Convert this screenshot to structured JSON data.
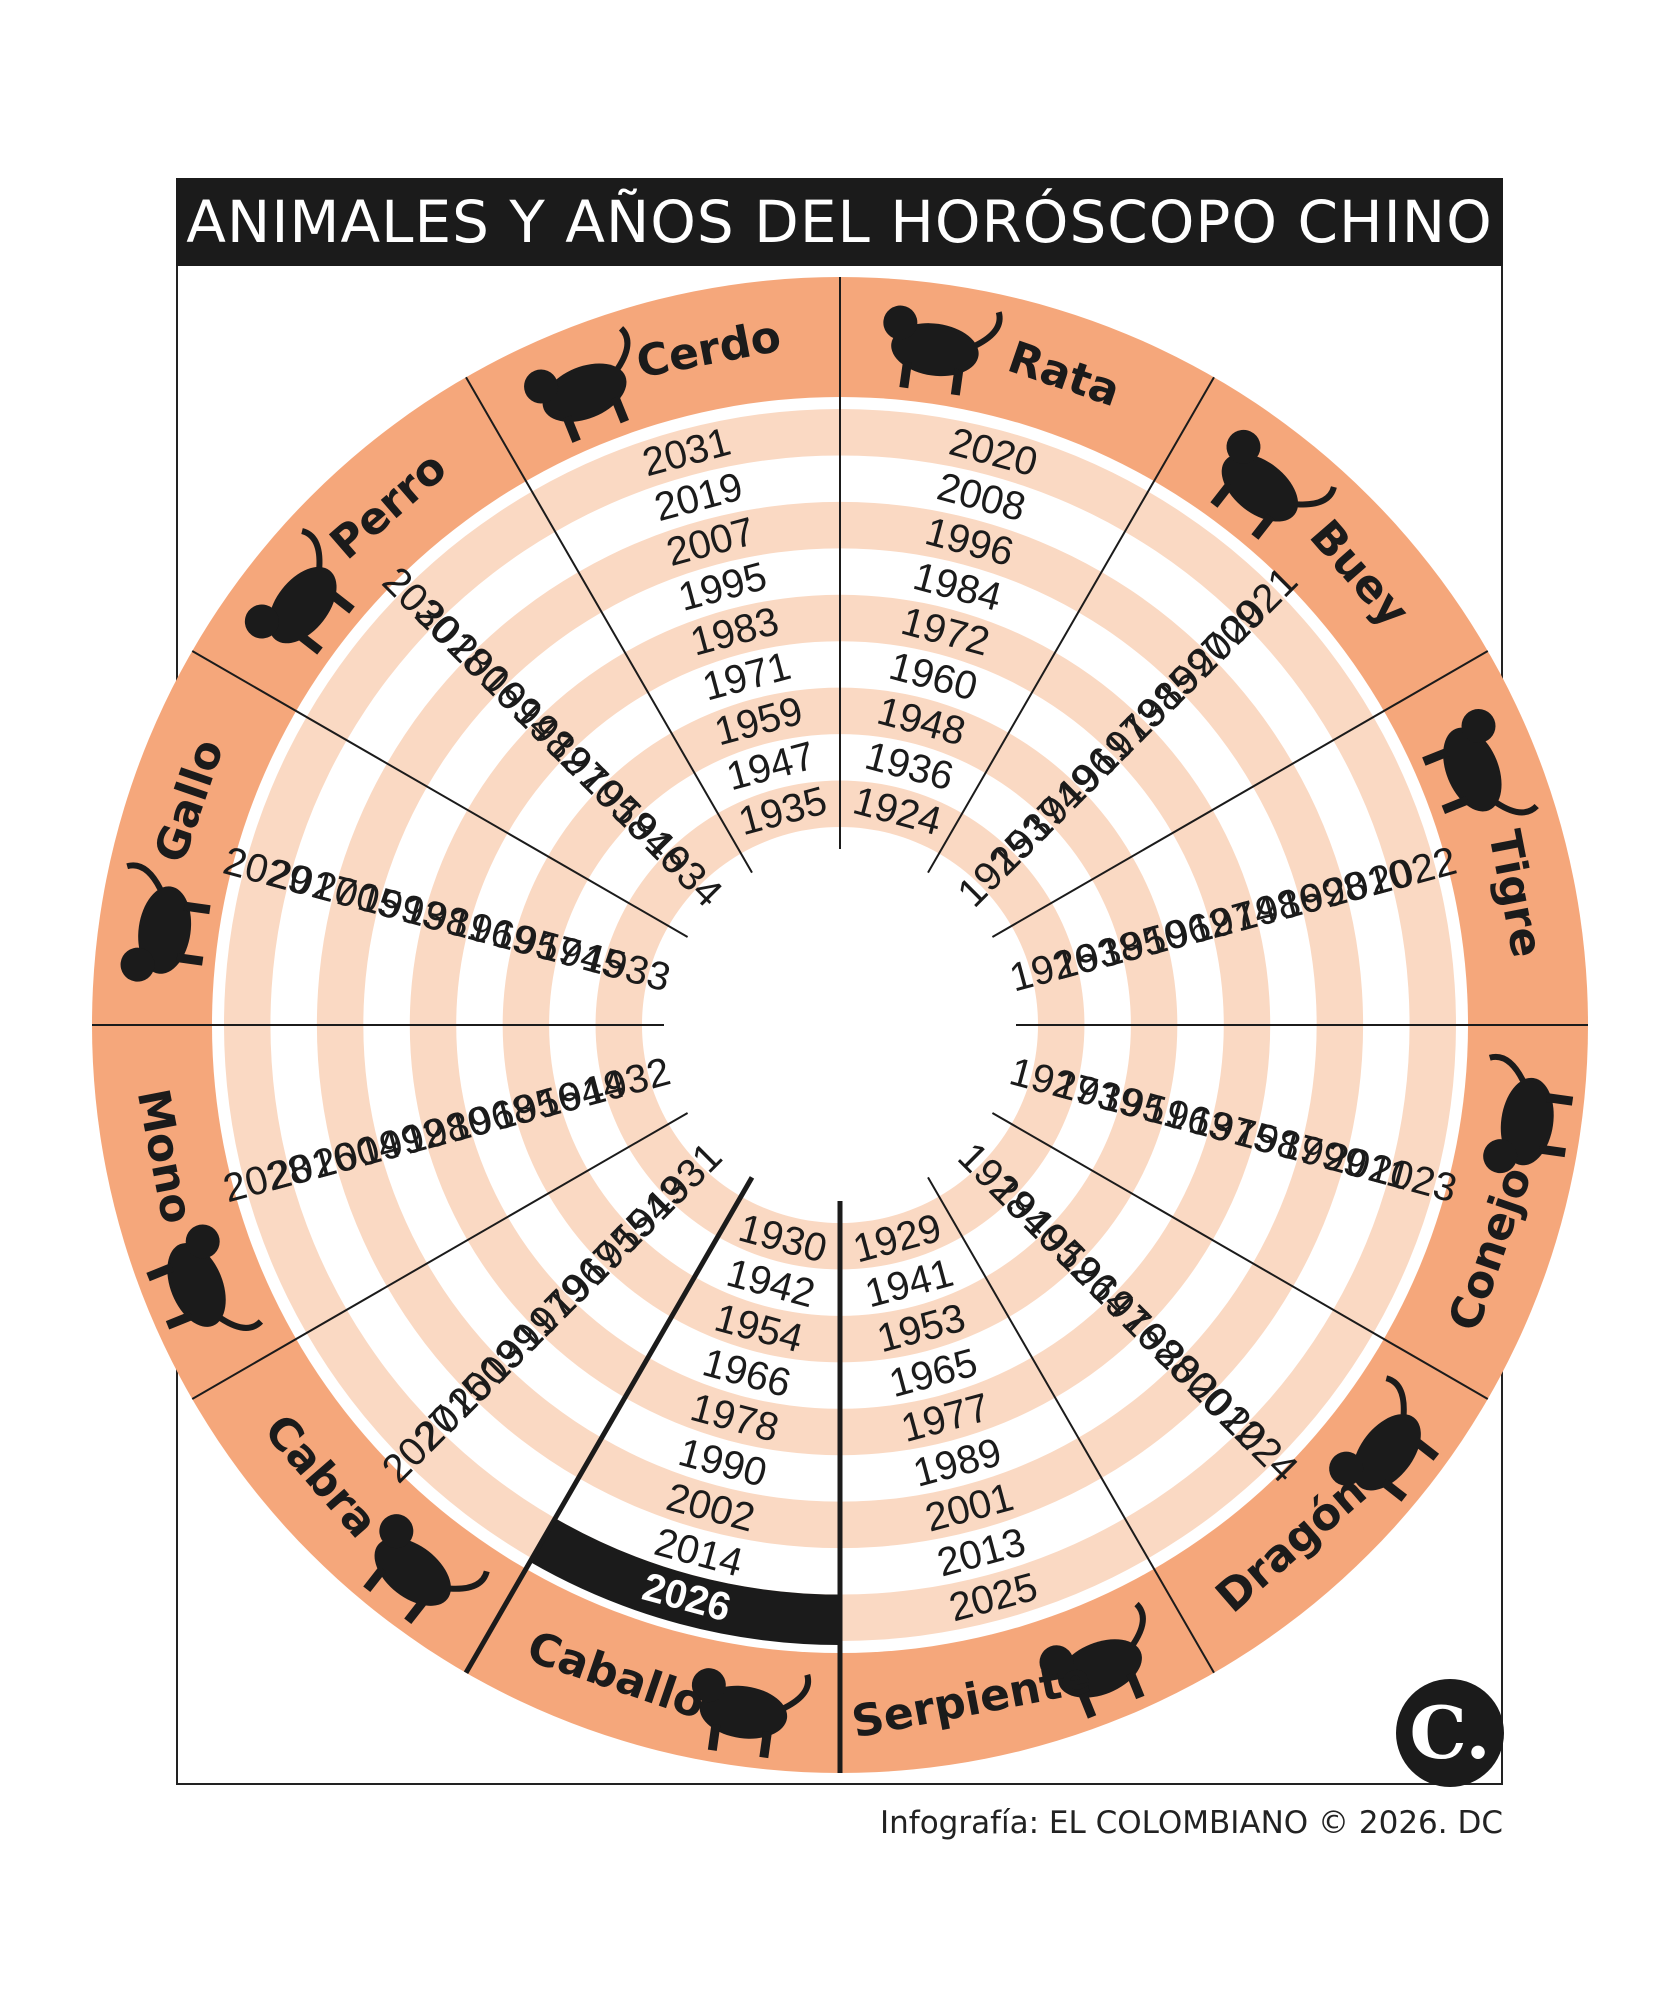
{
  "title": "ANIMALES Y AÑOS DEL HORÓSCOPO CHINO",
  "credit": "Infografía: EL COLOMBIANO © 2026. DC",
  "logo_letter": "C.",
  "colors": {
    "ring": "#f5a77b",
    "band": "#fad9c3",
    "ink": "#1b1b1b",
    "paper": "#ffffff"
  },
  "highlight_year": "2026",
  "signs": [
    {
      "name": "Rata",
      "icon": "rat-icon",
      "years": [
        "2020",
        "2008",
        "1996",
        "1984",
        "1972",
        "1960",
        "1948",
        "1936",
        "1924"
      ]
    },
    {
      "name": "Buey",
      "icon": "ox-icon",
      "years": [
        "2021",
        "2009",
        "1997",
        "1985",
        "1973",
        "1961",
        "1949",
        "1937",
        "1925"
      ]
    },
    {
      "name": "Tigre",
      "icon": "tiger-icon",
      "years": [
        "2022",
        "2010",
        "1998",
        "1986",
        "1974",
        "1962",
        "1950",
        "1938",
        "1926"
      ]
    },
    {
      "name": "Conejo",
      "icon": "rabbit-icon",
      "years": [
        "2023",
        "2011",
        "1999",
        "1987",
        "1975",
        "1963",
        "1951",
        "1939",
        "1927"
      ]
    },
    {
      "name": "Dragón",
      "icon": "dragon-icon",
      "years": [
        "2024",
        "2012",
        "2000",
        "1988",
        "1976",
        "1964",
        "1952",
        "1940",
        "1928"
      ]
    },
    {
      "name": "Serpiente",
      "icon": "snake-icon",
      "years": [
        "2025",
        "2013",
        "2001",
        "1989",
        "1977",
        "1965",
        "1953",
        "1941",
        "1929"
      ]
    },
    {
      "name": "Caballo",
      "icon": "horse-icon",
      "years": [
        "2026",
        "2014",
        "2002",
        "1990",
        "1978",
        "1966",
        "1954",
        "1942",
        "1930"
      ]
    },
    {
      "name": "Cabra",
      "icon": "goat-icon",
      "years": [
        "2027",
        "2015",
        "2003",
        "1991",
        "1979",
        "1967",
        "1955",
        "1943",
        "1931"
      ]
    },
    {
      "name": "Mono",
      "icon": "monkey-icon",
      "years": [
        "2028",
        "2016",
        "2004",
        "1992",
        "1980",
        "1968",
        "1956",
        "1944",
        "1932"
      ]
    },
    {
      "name": "Gallo",
      "icon": "rooster-icon",
      "years": [
        "2029",
        "2017",
        "2005",
        "1993",
        "1981",
        "1969",
        "1957",
        "1945",
        "1933"
      ]
    },
    {
      "name": "Perro",
      "icon": "dog-icon",
      "years": [
        "2030",
        "2018",
        "2006",
        "1994",
        "1982",
        "1970",
        "1958",
        "1946",
        "1934"
      ]
    },
    {
      "name": "Cerdo",
      "icon": "pig-icon",
      "years": [
        "2031",
        "2019",
        "2007",
        "1995",
        "1983",
        "1971",
        "1959",
        "1947",
        "1935"
      ]
    }
  ]
}
